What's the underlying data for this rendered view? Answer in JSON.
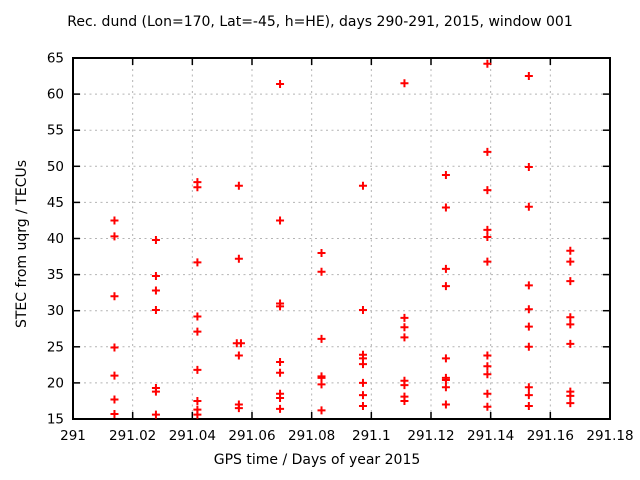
{
  "title": "Rec. dund (Lon=170, Lat=-45, h=HE), days 290-291, 2015, window 001",
  "colors": {
    "marker": "#ff0000",
    "grid": "#b4b4b4",
    "border": "#000000",
    "background": "#ffffff",
    "text": "#000000"
  },
  "chart_data": {
    "type": "scatter",
    "title": "Rec. dund (Lon=170, Lat=-45, h=HE), days 290-291, 2015, window 001",
    "xlabel": "GPS time / Days of year 2015",
    "ylabel": "STEC from uqrg / TECUs",
    "xlim": [
      291,
      291.18
    ],
    "ylim": [
      15,
      65
    ],
    "x_tick_values": [
      291,
      291.02,
      291.04,
      291.06,
      291.08,
      291.1,
      291.12,
      291.14,
      291.16,
      291.18
    ],
    "x_tick_labels": [
      "291",
      "291.02",
      "291.04",
      "291.06",
      "291.08",
      "291.1",
      "291.12",
      "291.14",
      "291.16",
      "291.18"
    ],
    "y_tick_values": [
      15,
      20,
      25,
      30,
      35,
      40,
      45,
      50,
      55,
      60,
      65
    ],
    "y_tick_labels": [
      "15",
      "20",
      "25",
      "30",
      "35",
      "40",
      "45",
      "50",
      "55",
      "60",
      "65"
    ],
    "grid": true,
    "legend": "none",
    "marker": {
      "shape": "plus",
      "color": "#ff0000",
      "half_size": 4,
      "stroke_width": 2
    },
    "series": [
      {
        "name": "STEC",
        "points": [
          [
            291.0139,
            42.5
          ],
          [
            291.0139,
            40.3
          ],
          [
            291.0139,
            32.0
          ],
          [
            291.0139,
            24.9
          ],
          [
            291.0139,
            21.0
          ],
          [
            291.0139,
            17.7
          ],
          [
            291.0139,
            15.7
          ],
          [
            291.0278,
            39.8
          ],
          [
            291.0278,
            34.8
          ],
          [
            291.0278,
            32.8
          ],
          [
            291.0278,
            30.1
          ],
          [
            291.0278,
            19.3
          ],
          [
            291.0278,
            18.8
          ],
          [
            291.0278,
            15.6
          ],
          [
            291.0417,
            47.8
          ],
          [
            291.0417,
            47.1
          ],
          [
            291.0417,
            36.7
          ],
          [
            291.0417,
            29.2
          ],
          [
            291.0417,
            27.1
          ],
          [
            291.0417,
            21.8
          ],
          [
            291.0417,
            17.5
          ],
          [
            291.0417,
            16.3
          ],
          [
            291.0417,
            15.6
          ],
          [
            291.0556,
            47.3
          ],
          [
            291.0556,
            37.2
          ],
          [
            291.0549,
            25.5
          ],
          [
            291.0563,
            25.5
          ],
          [
            291.0556,
            23.8
          ],
          [
            291.0556,
            17.0
          ],
          [
            291.0556,
            16.5
          ],
          [
            291.0694,
            61.4
          ],
          [
            291.0694,
            42.5
          ],
          [
            291.0694,
            31.0
          ],
          [
            291.0694,
            30.6
          ],
          [
            291.0694,
            22.9
          ],
          [
            291.0694,
            21.4
          ],
          [
            291.0694,
            18.5
          ],
          [
            291.0694,
            17.9
          ],
          [
            291.0694,
            16.4
          ],
          [
            291.0833,
            38.0
          ],
          [
            291.0833,
            35.4
          ],
          [
            291.0833,
            26.1
          ],
          [
            291.0833,
            20.9
          ],
          [
            291.0833,
            20.7
          ],
          [
            291.0833,
            19.8
          ],
          [
            291.0833,
            16.2
          ],
          [
            291.0972,
            47.3
          ],
          [
            291.0972,
            30.1
          ],
          [
            291.0972,
            23.9
          ],
          [
            291.0972,
            23.4
          ],
          [
            291.0972,
            22.6
          ],
          [
            291.0972,
            20.0
          ],
          [
            291.0972,
            18.3
          ],
          [
            291.0972,
            16.8
          ],
          [
            291.1111,
            61.5
          ],
          [
            291.1111,
            29.0
          ],
          [
            291.1111,
            27.7
          ],
          [
            291.1111,
            26.3
          ],
          [
            291.1111,
            20.3
          ],
          [
            291.1111,
            19.7
          ],
          [
            291.1111,
            18.1
          ],
          [
            291.1111,
            17.5
          ],
          [
            291.125,
            48.8
          ],
          [
            291.125,
            44.3
          ],
          [
            291.125,
            35.8
          ],
          [
            291.125,
            33.4
          ],
          [
            291.125,
            23.4
          ],
          [
            291.125,
            20.7
          ],
          [
            291.125,
            20.4
          ],
          [
            291.125,
            19.4
          ],
          [
            291.125,
            17.0
          ],
          [
            291.1389,
            64.2
          ],
          [
            291.1389,
            52.0
          ],
          [
            291.1389,
            46.7
          ],
          [
            291.1389,
            41.2
          ],
          [
            291.1389,
            40.2
          ],
          [
            291.1389,
            36.8
          ],
          [
            291.1389,
            23.8
          ],
          [
            291.1389,
            22.3
          ],
          [
            291.1389,
            21.2
          ],
          [
            291.1389,
            18.5
          ],
          [
            291.1389,
            16.7
          ],
          [
            291.1528,
            62.5
          ],
          [
            291.1528,
            49.9
          ],
          [
            291.1528,
            44.4
          ],
          [
            291.1528,
            33.5
          ],
          [
            291.1528,
            30.2
          ],
          [
            291.1528,
            27.8
          ],
          [
            291.1528,
            25.0
          ],
          [
            291.1528,
            19.4
          ],
          [
            291.1528,
            18.3
          ],
          [
            291.1528,
            16.8
          ],
          [
            291.1667,
            38.3
          ],
          [
            291.1667,
            36.8
          ],
          [
            291.1667,
            34.1
          ],
          [
            291.1667,
            29.1
          ],
          [
            291.1667,
            28.1
          ],
          [
            291.1667,
            25.4
          ],
          [
            291.1667,
            18.8
          ],
          [
            291.1667,
            18.2
          ],
          [
            291.1667,
            17.2
          ]
        ]
      }
    ]
  }
}
